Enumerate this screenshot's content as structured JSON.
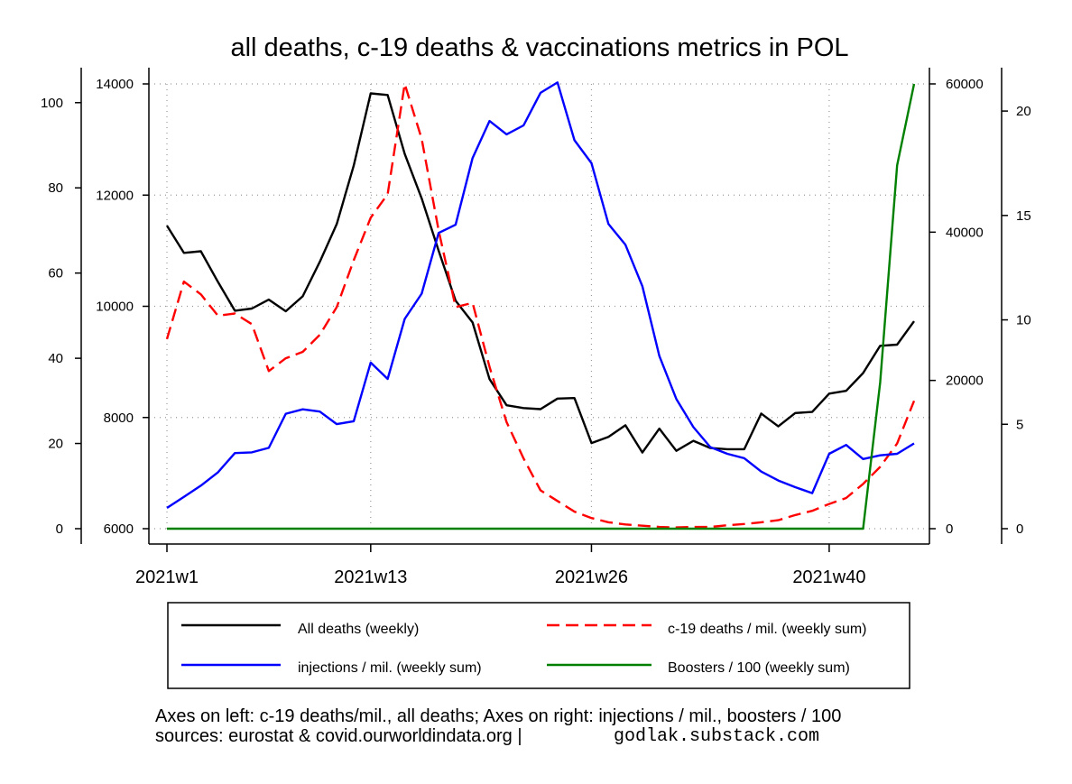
{
  "chart_data": {
    "type": "line",
    "title": "all deaths, c-19 deaths & vaccinations metrics in POL",
    "x_ticks": [
      {
        "week": 1,
        "label": "2021w1"
      },
      {
        "week": 13,
        "label": "2021w13"
      },
      {
        "week": 26,
        "label": "2021w26"
      },
      {
        "week": 40,
        "label": "2021w40"
      }
    ],
    "xlim": [
      1,
      45
    ],
    "axes": {
      "left_outer": {
        "ylim": [
          0,
          104.4
        ],
        "ticks": [
          0,
          20,
          40,
          60,
          80,
          100
        ],
        "tick_labels": [
          "0",
          "20",
          "40",
          "60",
          "80",
          "100"
        ]
      },
      "left_inner": {
        "ylim": [
          6000,
          14000
        ],
        "ticks": [
          6000,
          8000,
          10000,
          12000,
          14000
        ],
        "tick_labels": [
          "6000",
          "8000",
          "10000",
          "12000",
          "14000"
        ]
      },
      "right_inner": {
        "ylim": [
          0,
          60000
        ],
        "ticks": [
          0,
          20000,
          40000,
          60000
        ],
        "tick_labels": [
          "0",
          "20000",
          "40000",
          "60000"
        ]
      },
      "right_outer": {
        "ylim": [
          0,
          21.3
        ],
        "ticks": [
          0,
          5,
          10,
          15,
          20
        ],
        "tick_labels": [
          "0",
          "5",
          "10",
          "15",
          "20"
        ]
      }
    },
    "grid": true,
    "series": [
      {
        "name": "All deaths (weekly)",
        "axis": "left_inner",
        "color": "#000000",
        "dash": "",
        "x": [
          1,
          2,
          3,
          4,
          5,
          6,
          7,
          8,
          9,
          10,
          11,
          12,
          13,
          14,
          15,
          16,
          17,
          18,
          19,
          20,
          21,
          22,
          23,
          24,
          25,
          26,
          27,
          28,
          29,
          30,
          31,
          32,
          33,
          34,
          35,
          36,
          37,
          38,
          39,
          40,
          41,
          42,
          43,
          44,
          45
        ],
        "y": [
          11450,
          10960,
          10990,
          10440,
          9920,
          9960,
          10120,
          9910,
          10180,
          10800,
          11480,
          12530,
          13830,
          13800,
          12740,
          11940,
          11000,
          10100,
          9710,
          8690,
          8220,
          8170,
          8150,
          8340,
          8350,
          7540,
          7650,
          7860,
          7370,
          7800,
          7400,
          7580,
          7450,
          7430,
          7430,
          8070,
          7840,
          8080,
          8100,
          8430,
          8480,
          8800,
          9290,
          9310,
          9730
        ]
      },
      {
        "name": "c-19 deaths / mil. (weekly sum)",
        "axis": "left_outer",
        "color": "#ff0000",
        "dash": "14,7",
        "x": [
          1,
          2,
          3,
          4,
          5,
          6,
          7,
          8,
          9,
          10,
          11,
          12,
          13,
          14,
          15,
          16,
          17,
          18,
          19,
          20,
          21,
          22,
          23,
          24,
          25,
          26,
          27,
          28,
          29,
          30,
          31,
          32,
          33,
          34,
          35,
          36,
          37,
          38,
          39,
          40,
          41,
          42,
          43,
          44,
          45
        ],
        "y": [
          44.5,
          58,
          55,
          50,
          50.5,
          48,
          37,
          40,
          41.5,
          45.5,
          52,
          63,
          73,
          78.5,
          104.4,
          91.5,
          70,
          52,
          53,
          38,
          25,
          16.5,
          9,
          6.5,
          4,
          2.5,
          1.5,
          1,
          0.7,
          0.4,
          0.3,
          0.4,
          0.4,
          0.8,
          1.1,
          1.5,
          2,
          3.2,
          4.2,
          5.8,
          7.2,
          10.5,
          14.5,
          20,
          30
        ]
      },
      {
        "name": "injections / mil. (weekly sum)",
        "axis": "right_inner",
        "color": "#0000ff",
        "dash": "",
        "x": [
          1,
          2,
          3,
          4,
          5,
          6,
          7,
          8,
          9,
          10,
          11,
          12,
          13,
          14,
          15,
          16,
          17,
          18,
          19,
          20,
          21,
          22,
          23,
          24,
          25,
          26,
          27,
          28,
          29,
          30,
          31,
          32,
          33,
          34,
          35,
          36,
          37,
          38,
          39,
          40,
          41,
          42,
          43,
          44,
          45
        ],
        "y": [
          2800,
          4300,
          5800,
          7600,
          10200,
          10300,
          10900,
          15500,
          16100,
          15800,
          14100,
          14500,
          22400,
          20200,
          28300,
          31700,
          39900,
          41000,
          50000,
          55000,
          53200,
          54400,
          58800,
          60200,
          52400,
          49300,
          41100,
          38300,
          32700,
          23300,
          17500,
          13700,
          11000,
          10100,
          9500,
          7700,
          6500,
          5600,
          4800,
          10100,
          11300,
          9400,
          9900,
          10100,
          11500
        ]
      },
      {
        "name": "Boosters / 100 (weekly sum)",
        "axis": "right_outer",
        "color": "#008000",
        "dash": "",
        "x": [
          1,
          2,
          3,
          4,
          5,
          6,
          7,
          8,
          9,
          10,
          11,
          12,
          13,
          14,
          15,
          16,
          17,
          18,
          19,
          20,
          21,
          22,
          23,
          24,
          25,
          26,
          27,
          28,
          29,
          30,
          31,
          32,
          33,
          34,
          35,
          36,
          37,
          38,
          39,
          40,
          41,
          42,
          43,
          44,
          45
        ],
        "y": [
          0,
          0,
          0,
          0,
          0,
          0,
          0,
          0,
          0,
          0,
          0,
          0,
          0,
          0,
          0,
          0,
          0,
          0,
          0,
          0,
          0,
          0,
          0,
          0,
          0,
          0,
          0,
          0,
          0,
          0,
          0,
          0,
          0,
          0,
          0,
          0,
          0,
          0,
          0,
          0,
          0,
          0,
          7,
          17.4,
          21.3
        ]
      }
    ],
    "legend": {
      "placement": "bottom",
      "columns": 2
    },
    "annotations": [
      "Axes on left: c-19 deaths/mil., all deaths; Axes on right: injections / mil., boosters / 100",
      "sources: eurostat & covid.ourworldindata.org |",
      "godlak.substack.com"
    ]
  }
}
